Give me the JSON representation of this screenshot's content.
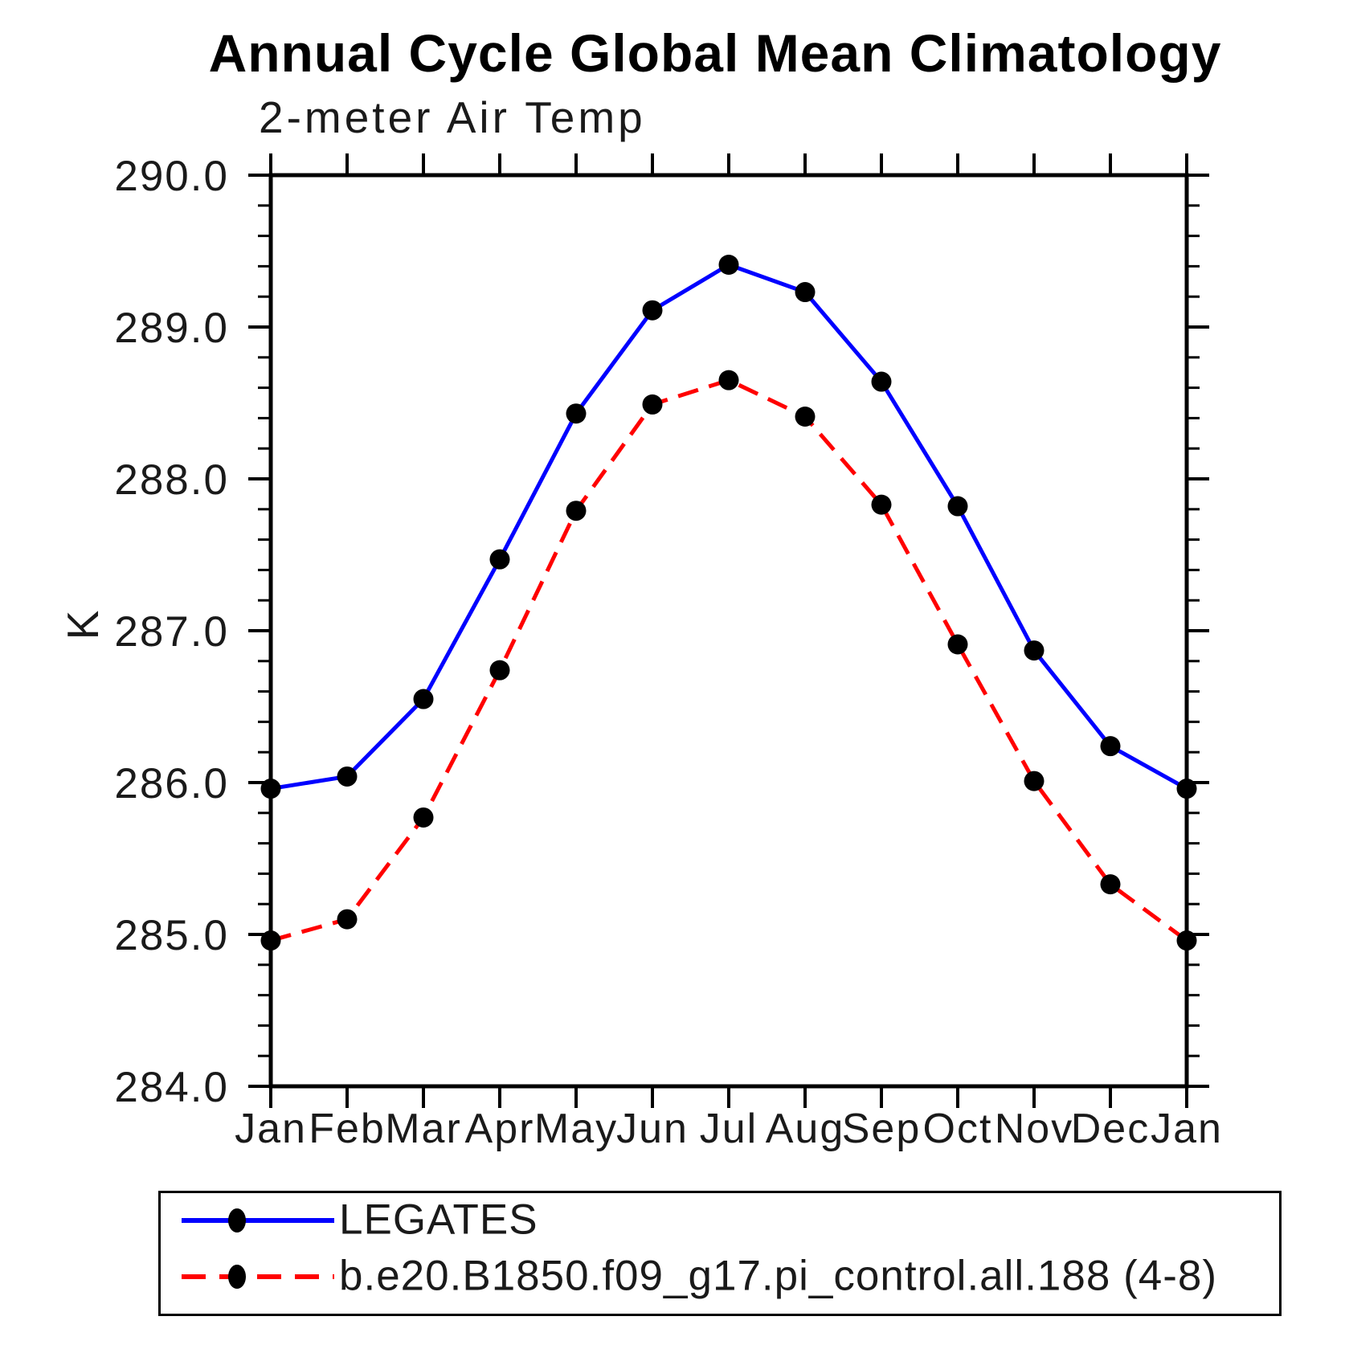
{
  "chart_data": {
    "type": "line",
    "title": "Annual Cycle Global Mean Climatology",
    "subtitle": "2-meter Air Temp",
    "ylabel": "K",
    "ylim": [
      284.0,
      290.0
    ],
    "y_major_step": 1.0,
    "y_minor_step": 0.2,
    "y_tick_labels": [
      "290.0",
      "289.0",
      "288.0",
      "287.0",
      "286.0",
      "285.0",
      "284.0"
    ],
    "categories": [
      "Jan",
      "Feb",
      "Mar",
      "Apr",
      "May",
      "Jun",
      "Jul",
      "Aug",
      "Sep",
      "Oct",
      "Nov",
      "Dec",
      "Jan"
    ],
    "grid": false,
    "legend_position": "bottom",
    "axis_color": "#000000",
    "marker_color": "#000000",
    "series": [
      {
        "name": "LEGATES",
        "color": "#0000ff",
        "line": "solid",
        "marker": "filled-circle",
        "values": [
          285.96,
          286.04,
          286.55,
          287.47,
          288.43,
          289.11,
          289.41,
          289.23,
          288.64,
          287.82,
          286.87,
          286.24,
          285.96
        ]
      },
      {
        "name": "b.e20.B1850.f09_g17.pi_control.all.188 (4-8)",
        "color": "#ff0000",
        "line": "dashed",
        "marker": "filled-circle",
        "values": [
          284.96,
          285.1,
          285.77,
          286.74,
          287.79,
          288.49,
          288.65,
          288.41,
          287.83,
          286.91,
          286.01,
          285.33,
          284.96
        ]
      }
    ]
  }
}
